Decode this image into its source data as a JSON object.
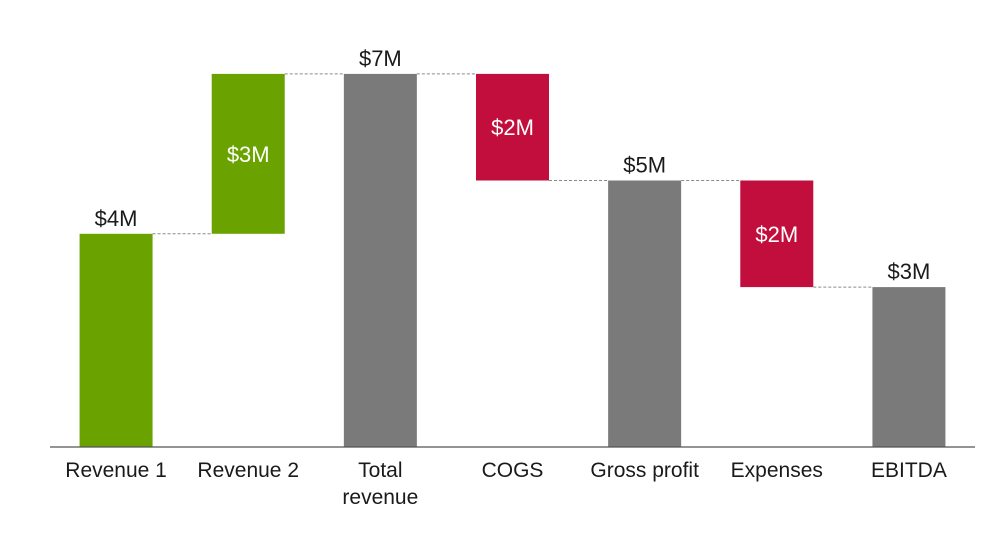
{
  "chart_data": {
    "type": "bar",
    "subtype": "waterfall",
    "title": "",
    "xlabel": "",
    "ylabel": "",
    "ylim": [
      0,
      7
    ],
    "grid": false,
    "legend": "none",
    "categories": [
      "Revenue 1",
      "Revenue 2",
      "Total revenue",
      "COGS",
      "Gross profit",
      "Expenses",
      "EBITDA"
    ],
    "category_label_lines": [
      [
        "Revenue 1"
      ],
      [
        "Revenue 2"
      ],
      [
        "Total",
        "revenue"
      ],
      [
        "COGS"
      ],
      [
        "Gross profit"
      ],
      [
        "Expenses"
      ],
      [
        "EBITDA"
      ]
    ],
    "steps": [
      {
        "kind": "increase",
        "base": 0,
        "top": 4,
        "label": "$4M",
        "label_position": "above"
      },
      {
        "kind": "increase",
        "base": 4,
        "top": 7,
        "label": "$3M",
        "label_position": "inside"
      },
      {
        "kind": "total",
        "base": 0,
        "top": 7,
        "label": "$7M",
        "label_position": "above"
      },
      {
        "kind": "decrease",
        "base": 5,
        "top": 7,
        "label": "$2M",
        "label_position": "inside"
      },
      {
        "kind": "total",
        "base": 0,
        "top": 5,
        "label": "$5M",
        "label_position": "above"
      },
      {
        "kind": "decrease",
        "base": 3,
        "top": 5,
        "label": "$2M",
        "label_position": "inside"
      },
      {
        "kind": "total",
        "base": 0,
        "top": 3,
        "label": "$3M",
        "label_position": "above"
      }
    ],
    "colors": {
      "increase": "#6aa300",
      "decrease": "#c20e3c",
      "total": "#7a7a7a"
    }
  }
}
